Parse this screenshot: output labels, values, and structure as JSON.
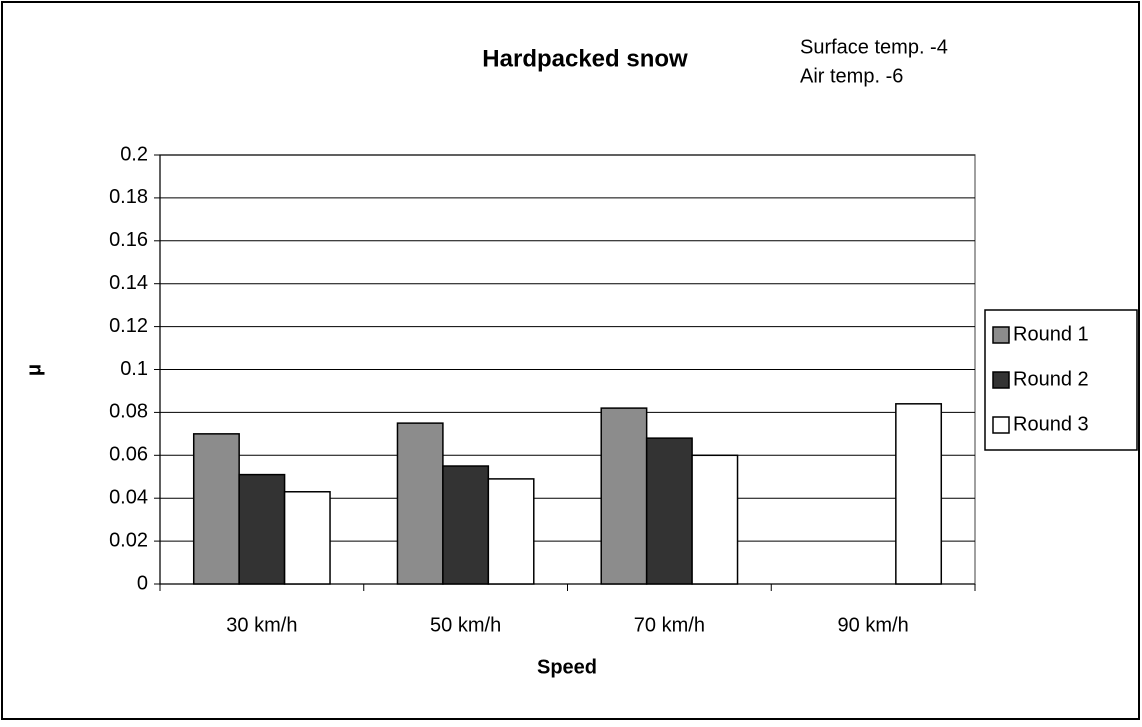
{
  "chart_data": {
    "type": "bar",
    "title": "Hardpacked snow",
    "annotations": [
      "Surface temp. -4",
      "Air temp. -6"
    ],
    "x_label": "Speed",
    "y_label": "μ",
    "categories": [
      "30 km/h",
      "50 km/h",
      "70 km/h",
      "90 km/h"
    ],
    "series": [
      {
        "name": "Round 1",
        "color": "#8c8c8c",
        "values": [
          0.07,
          0.075,
          0.082,
          null
        ]
      },
      {
        "name": "Round 2",
        "color": "#333333",
        "values": [
          0.051,
          0.055,
          0.068,
          null
        ]
      },
      {
        "name": "Round 3",
        "color": "#ffffff",
        "values": [
          0.043,
          0.049,
          0.06,
          0.084
        ]
      }
    ],
    "ylim": [
      0,
      0.2
    ],
    "yticks": [
      0,
      0.02,
      0.04,
      0.06,
      0.08,
      0.1,
      0.12,
      0.14,
      0.16,
      0.18,
      0.2
    ],
    "grid": true,
    "legend": "right"
  }
}
